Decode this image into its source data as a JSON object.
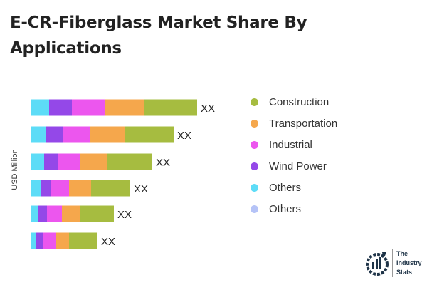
{
  "title": "E-CR-Fiberglass Market Share By Applications",
  "chart_data": {
    "type": "bar",
    "orientation": "horizontal",
    "stacked": true,
    "title": "E-CR-Fiberglass Market Share By Applications",
    "ylabel": "USD Million",
    "categories": [
      "",
      "",
      "",
      "",
      "",
      ""
    ],
    "data_labels": [
      "XX",
      "XX",
      "XX",
      "XX",
      "XX",
      "XX"
    ],
    "series": [
      {
        "name": "Others",
        "color": "#5ddcf7",
        "values": [
          25,
          21,
          18,
          13,
          10,
          7
        ]
      },
      {
        "name": "Wind Power",
        "color": "#9448e8",
        "values": [
          32,
          24,
          20,
          15,
          12,
          10
        ]
      },
      {
        "name": "Industrial",
        "color": "#ec56ee",
        "values": [
          47,
          37,
          31,
          25,
          21,
          17
        ]
      },
      {
        "name": "Transportation",
        "color": "#f5a74c",
        "values": [
          54,
          49,
          38,
          31,
          26,
          19
        ]
      },
      {
        "name": "Construction",
        "color": "#a6bc40",
        "values": [
          75,
          69,
          63,
          55,
          47,
          40
        ]
      }
    ],
    "grid": false,
    "legend_position": "right"
  },
  "legend": [
    {
      "label": "Construction",
      "color": "#a6bc40"
    },
    {
      "label": "Transportation",
      "color": "#f5a74c"
    },
    {
      "label": "Industrial",
      "color": "#ec56ee"
    },
    {
      "label": "Wind Power",
      "color": "#9448e8"
    },
    {
      "label": "Others",
      "color": "#5ddcf7"
    },
    {
      "label": "Others",
      "color": "#b5c3f7"
    }
  ],
  "logo": {
    "line1": "The",
    "line2": "Industry",
    "line3": "Stats"
  }
}
